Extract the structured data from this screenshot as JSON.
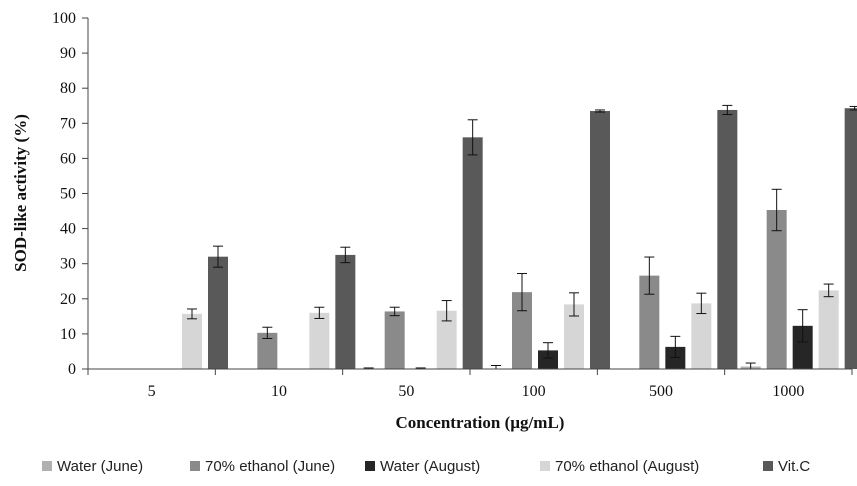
{
  "chart_data": {
    "type": "bar",
    "xlabel": "Concentration (µg/mL)",
    "ylabel": "SOD-like activity (%)",
    "ylim": [
      0,
      100
    ],
    "yticks": [
      "0",
      "10",
      "20",
      "30",
      "40",
      "50",
      "60",
      "70",
      "80",
      "90",
      "100"
    ],
    "grid": false,
    "legend_position": "bottom",
    "categories": [
      "5",
      "10",
      "50",
      "100",
      "500",
      "1000"
    ],
    "series": [
      {
        "name": "Water (June)",
        "color": "#b0b0b0",
        "values": [
          0,
          0,
          0,
          0,
          0,
          0.7
        ],
        "errors": [
          0,
          0,
          0.3,
          1.0,
          0,
          1.0
        ]
      },
      {
        "name": "70% ethanol (June)",
        "color": "#8a8a8a",
        "values": [
          0,
          10.3,
          16.4,
          21.9,
          26.6,
          45.3
        ],
        "errors": [
          0,
          1.6,
          1.2,
          5.3,
          5.3,
          5.9
        ]
      },
      {
        "name": "Water (August)",
        "color": "#262626",
        "values": [
          0,
          0,
          0,
          5.3,
          6.3,
          12.3
        ],
        "errors": [
          0,
          0,
          0.3,
          2.2,
          3.0,
          4.6
        ]
      },
      {
        "name": "70% ethanol (August)",
        "color": "#d6d6d6",
        "values": [
          15.7,
          16.0,
          16.6,
          18.4,
          18.7,
          22.4
        ],
        "errors": [
          1.4,
          1.6,
          2.9,
          3.3,
          2.9,
          1.8
        ]
      },
      {
        "name": "Vit.C",
        "color": "#595959",
        "values": [
          32.0,
          32.5,
          66.0,
          73.5,
          73.8,
          74.3
        ],
        "errors": [
          3.0,
          2.2,
          5.0,
          0.3,
          1.3,
          0.5
        ]
      }
    ]
  }
}
